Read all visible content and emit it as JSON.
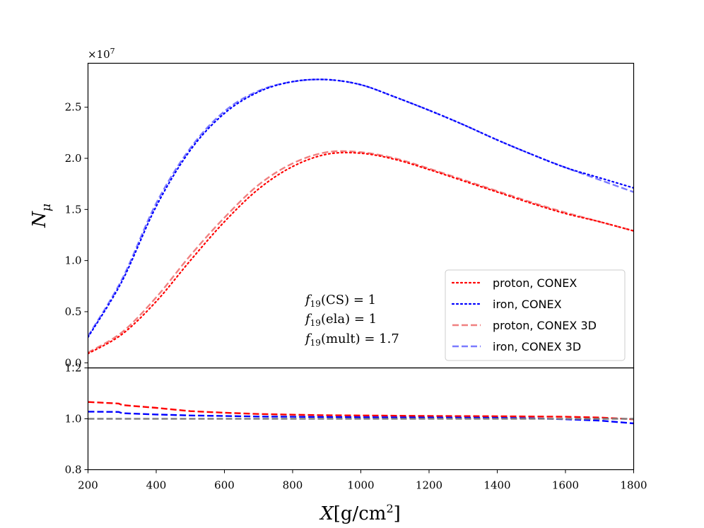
{
  "chart_data": [
    {
      "type": "line",
      "panel": "top",
      "ylabel": "N_μ",
      "offset_text": "×10^7",
      "xlim": [
        200,
        1800
      ],
      "ylim": [
        -0.05,
        2.93
      ],
      "yticks": [
        0.0,
        0.5,
        1.0,
        1.5,
        2.0,
        2.5
      ],
      "ytick_labels": [
        "0.0",
        "0.5",
        "1.0",
        "1.5",
        "2.0",
        "2.5"
      ],
      "grid": false,
      "legend_position": "lower-right",
      "annotation": [
        "f19(CS) = 1",
        "f19(ela) = 1",
        "f19(mult) = 1.7"
      ],
      "series": [
        {
          "name": "proton, CONEX",
          "color": "#ff0000",
          "style": "dotted",
          "x": [
            200,
            300,
            400,
            500,
            600,
            700,
            800,
            900,
            1000,
            1100,
            1200,
            1300,
            1400,
            1500,
            1600,
            1700,
            1800
          ],
          "y": [
            0.09,
            0.28,
            0.6,
            1.0,
            1.38,
            1.7,
            1.92,
            2.04,
            2.05,
            1.99,
            1.89,
            1.78,
            1.67,
            1.56,
            1.46,
            1.38,
            1.29
          ]
        },
        {
          "name": "iron, CONEX",
          "color": "#0000ff",
          "style": "dotted",
          "x": [
            200,
            300,
            400,
            500,
            600,
            700,
            800,
            900,
            1000,
            1100,
            1200,
            1300,
            1400,
            1500,
            1600,
            1700,
            1800
          ],
          "y": [
            0.25,
            0.8,
            1.53,
            2.08,
            2.44,
            2.65,
            2.75,
            2.77,
            2.72,
            2.6,
            2.47,
            2.33,
            2.18,
            2.04,
            1.91,
            1.81,
            1.71
          ]
        },
        {
          "name": "proton, CONEX 3D",
          "color": "#f08080",
          "style": "dashed",
          "x": [
            200,
            300,
            400,
            500,
            600,
            700,
            800,
            900,
            1000,
            1100,
            1200,
            1300,
            1400,
            1500,
            1600,
            1700,
            1800
          ],
          "y": [
            0.1,
            0.3,
            0.64,
            1.05,
            1.42,
            1.74,
            1.95,
            2.06,
            2.06,
            2.0,
            1.9,
            1.79,
            1.68,
            1.57,
            1.47,
            1.38,
            1.29
          ]
        },
        {
          "name": "iron, CONEX 3D",
          "color": "#7b7bff",
          "style": "dashed",
          "x": [
            200,
            300,
            400,
            500,
            600,
            700,
            800,
            900,
            1000,
            1100,
            1200,
            1300,
            1400,
            1500,
            1600,
            1700,
            1800
          ],
          "y": [
            0.26,
            0.82,
            1.56,
            2.1,
            2.46,
            2.66,
            2.75,
            2.77,
            2.72,
            2.6,
            2.47,
            2.33,
            2.18,
            2.04,
            1.91,
            1.79,
            1.67
          ]
        }
      ]
    },
    {
      "type": "line",
      "panel": "bottom",
      "xlabel": "X[g/cm^2]",
      "xlim": [
        200,
        1800
      ],
      "ylim": [
        0.8,
        1.2
      ],
      "xticks": [
        200,
        400,
        600,
        800,
        1000,
        1200,
        1400,
        1600,
        1800
      ],
      "xtick_labels": [
        "200",
        "400",
        "600",
        "800",
        "1000",
        "1200",
        "1400",
        "1600",
        "1800"
      ],
      "yticks": [
        0.8,
        1.0,
        1.2
      ],
      "ytick_labels": [
        "0.8",
        "1.0",
        "1.2"
      ],
      "grid": false,
      "series": [
        {
          "color": "#ff0000",
          "style": "dashed",
          "x": [
            200,
            290,
            300,
            400,
            500,
            600,
            700,
            800,
            900,
            1000,
            1200,
            1400,
            1600,
            1700,
            1800
          ],
          "y": [
            1.066,
            1.06,
            1.054,
            1.043,
            1.03,
            1.024,
            1.019,
            1.016,
            1.014,
            1.013,
            1.011,
            1.01,
            1.008,
            1.005,
            0.998
          ]
        },
        {
          "color": "#0000ff",
          "style": "dashed",
          "x": [
            200,
            290,
            300,
            400,
            500,
            600,
            700,
            800,
            900,
            1000,
            1200,
            1400,
            1500,
            1600,
            1700,
            1800
          ],
          "y": [
            1.028,
            1.027,
            1.022,
            1.017,
            1.013,
            1.011,
            1.009,
            1.008,
            1.007,
            1.006,
            1.005,
            1.004,
            1.002,
            0.998,
            0.993,
            0.982
          ]
        },
        {
          "color": "#808080",
          "style": "dashed",
          "x": [
            200,
            1800
          ],
          "y": [
            1.0,
            1.0
          ]
        }
      ]
    }
  ]
}
